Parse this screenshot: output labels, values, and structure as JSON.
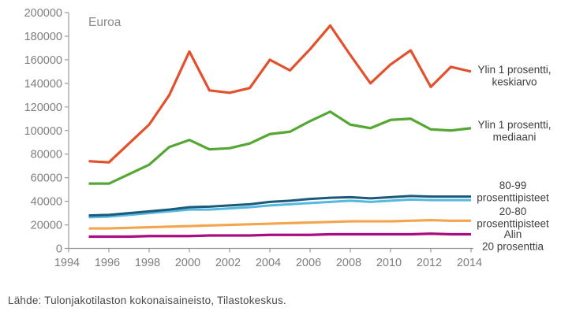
{
  "source_note": "Lähde: Tulonjakotilaston kokonaisaineisto, Tilastokeskus.",
  "colors": {
    "axis": "#9b9b9b",
    "tick_label": "#7e7e7e",
    "axis_title": "#8a8a8a",
    "series_label_text": "#3d3d3d",
    "source_text": "#4a4a4a"
  },
  "chart_data": {
    "type": "line",
    "title": "",
    "xlabel": "",
    "ylabel": "Euroa",
    "xlim": [
      1994,
      2014
    ],
    "ylim": [
      0,
      200000
    ],
    "grid": false,
    "legend_position": "right of line ends",
    "x_tick_labels": [
      "1994",
      "1996",
      "1998",
      "2000",
      "2002",
      "2004",
      "2006",
      "2008",
      "2010",
      "2012",
      "2014"
    ],
    "y_tick_labels": [
      "0",
      "20000",
      "40000",
      "60000",
      "80000",
      "100000",
      "120000",
      "140000",
      "160000",
      "180000",
      "200000"
    ],
    "x": [
      1995,
      1996,
      1997,
      1998,
      1999,
      2000,
      2001,
      2002,
      2003,
      2004,
      2005,
      2006,
      2007,
      2008,
      2009,
      2010,
      2011,
      2012,
      2013,
      2014
    ],
    "series": [
      {
        "name": "Ylin 1 prosentti, keskiarvo",
        "label_lines": [
          "Ylin 1 prosentti,",
          "keskiarvo"
        ],
        "color": "#e2512e",
        "values": [
          74000,
          73000,
          89000,
          105000,
          130000,
          167000,
          134000,
          132000,
          136000,
          160000,
          151000,
          169000,
          189000,
          164000,
          140000,
          156000,
          168000,
          137000,
          154000,
          150000
        ]
      },
      {
        "name": "Ylin 1 prosentti, mediaani",
        "label_lines": [
          "Ylin 1 prosentti,",
          "mediaani"
        ],
        "color": "#55a733",
        "values": [
          55000,
          55000,
          63000,
          71000,
          86000,
          92000,
          84000,
          85000,
          89000,
          97000,
          99000,
          108000,
          116000,
          105000,
          102000,
          109000,
          110000,
          101000,
          100000,
          102000
        ]
      },
      {
        "name": "80-99 prosenttipisteet (ylempi viiva)",
        "label_lines": [
          "80-99",
          "prosenttipisteet"
        ],
        "color": "#1a5a7a",
        "values": [
          28000,
          28500,
          30000,
          31500,
          33000,
          35000,
          35500,
          36500,
          37500,
          39500,
          40500,
          42000,
          43000,
          43500,
          42500,
          43500,
          44500,
          44000,
          44000,
          44000
        ]
      },
      {
        "name": "80-99 prosenttipisteet (alempi viiva)",
        "label_lines": [],
        "color": "#56b7e0",
        "values": [
          26500,
          27000,
          28500,
          30000,
          31500,
          33000,
          33000,
          34000,
          35000,
          36500,
          37500,
          38500,
          39500,
          40500,
          39500,
          40500,
          41500,
          41000,
          41000,
          41000
        ]
      },
      {
        "name": "20-80 prosenttipisteet",
        "label_lines": [
          "20-80",
          "prosenttipisteet"
        ],
        "color": "#f4a44e",
        "values": [
          17000,
          17000,
          17500,
          18000,
          18500,
          19000,
          19500,
          20000,
          20500,
          21000,
          21500,
          22000,
          22500,
          23000,
          23000,
          23000,
          23500,
          24000,
          23500,
          23500
        ]
      },
      {
        "name": "Alin 20 prosenttia",
        "label_lines": [
          "Alin",
          "20 prosenttia"
        ],
        "color": "#ab0c82",
        "values": [
          10000,
          10000,
          10000,
          10500,
          10500,
          10500,
          11000,
          11000,
          11000,
          11500,
          11500,
          11500,
          12000,
          12000,
          12000,
          12000,
          12000,
          12500,
          12000,
          12000
        ]
      }
    ]
  }
}
